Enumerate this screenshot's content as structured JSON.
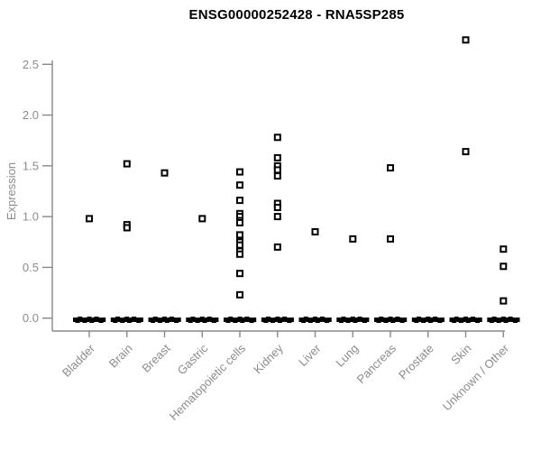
{
  "chart_data": {
    "type": "scatter",
    "subtype": "stripchart",
    "title": "ENSG00000252428 - RNA5SP285",
    "xlabel": "",
    "ylabel": "Expression",
    "ylim": [
      0,
      2.86
    ],
    "yticks": [
      0,
      0.5,
      1,
      1.5,
      2,
      2.5
    ],
    "grid": false,
    "legend": null,
    "marker": "open-square",
    "categories": [
      "Bladder",
      "Brain",
      "Breast",
      "Gastric",
      "Hematopoietic cells",
      "Kidney",
      "Liver",
      "Lung",
      "Pancreas",
      "Prostate",
      "Skin",
      "Unknown / Other"
    ],
    "series": [
      {
        "category": "Bladder",
        "nonzero_values": [
          0.98
        ],
        "zero_cluster": true
      },
      {
        "category": "Brain",
        "nonzero_values": [
          1.52,
          0.92,
          0.89
        ],
        "zero_cluster": true
      },
      {
        "category": "Breast",
        "nonzero_values": [
          1.43
        ],
        "zero_cluster": true
      },
      {
        "category": "Gastric",
        "nonzero_values": [
          0.98
        ],
        "zero_cluster": true
      },
      {
        "category": "Hematopoietic cells",
        "nonzero_values": [
          1.44,
          1.31,
          1.16,
          1.03,
          1.0,
          0.96,
          0.94,
          0.82,
          0.75,
          0.72,
          0.66,
          0.63,
          0.44,
          0.23
        ],
        "zero_cluster": true
      },
      {
        "category": "Kidney",
        "nonzero_values": [
          1.78,
          1.58,
          1.5,
          1.46,
          1.4,
          1.13,
          1.09,
          1.0,
          0.7
        ],
        "zero_cluster": true
      },
      {
        "category": "Liver",
        "nonzero_values": [
          0.85
        ],
        "zero_cluster": true
      },
      {
        "category": "Lung",
        "nonzero_values": [
          0.78
        ],
        "zero_cluster": true
      },
      {
        "category": "Pancreas",
        "nonzero_values": [
          1.48,
          0.78
        ],
        "zero_cluster": true
      },
      {
        "category": "Prostate",
        "nonzero_values": [],
        "zero_cluster": true
      },
      {
        "category": "Skin",
        "nonzero_values": [
          2.74,
          1.64
        ],
        "zero_cluster": true
      },
      {
        "category": "Unknown / Other",
        "nonzero_values": [
          0.68,
          0.51,
          0.17
        ],
        "zero_cluster": true
      }
    ],
    "colors": {
      "point": "#000000",
      "axis": "#888888",
      "tick_label": "#8c8c8c",
      "axis_title": "#8c8c8c",
      "title": "#000000",
      "background": "#ffffff"
    }
  }
}
